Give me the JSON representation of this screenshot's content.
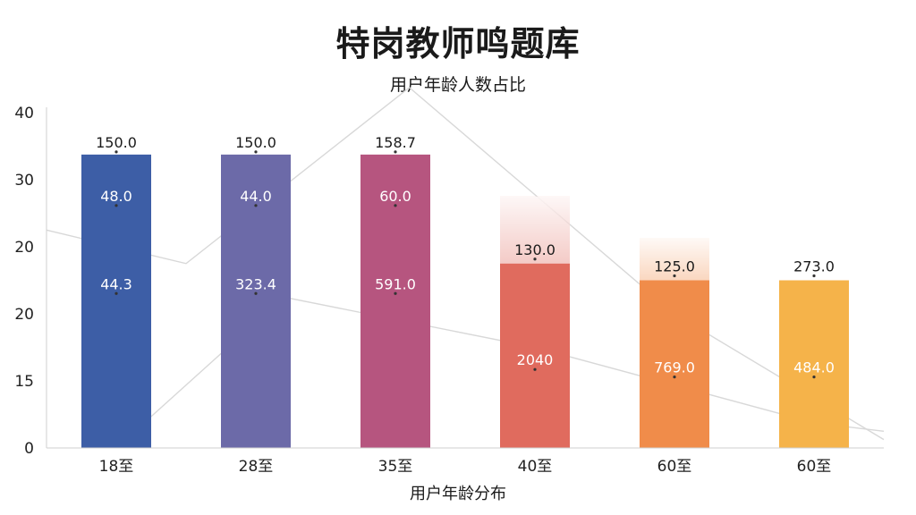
{
  "chart_data": {
    "type": "bar",
    "title": "特岗教师鸣题库",
    "subtitle": "用户年龄人数占比",
    "xlabel": "用户年龄分布",
    "ylabel": "",
    "y_tick_labels": [
      "0",
      "15",
      "20",
      "20",
      "30",
      "40"
    ],
    "categories": [
      "18至",
      "28至",
      "35至",
      "40至",
      "60至",
      "60至"
    ],
    "ylim": [
      0,
      40
    ],
    "grid": false,
    "legend": "none",
    "series": [
      {
        "label": "bar height",
        "values": [
          35,
          35,
          35,
          22,
          20,
          20
        ]
      },
      {
        "label": "upper segment",
        "values": [
          35,
          35,
          35,
          30,
          25,
          19
        ]
      }
    ],
    "data_labels": [
      [
        "150.0",
        "48.0",
        "44.3"
      ],
      [
        "150.0",
        "44.0",
        "323.4"
      ],
      [
        "158.7",
        "60.0",
        "591.0"
      ],
      [
        "130.0",
        "2040"
      ],
      [
        "125.0",
        "769.0"
      ],
      [
        "273.0",
        "484.0"
      ]
    ],
    "line_series": [
      {
        "label": "trend-upper",
        "x": [
          -0.5,
          0.5,
          2.1,
          4,
          5.5
        ],
        "y": [
          26,
          22,
          43,
          16,
          1
        ]
      },
      {
        "label": "trend-lower",
        "x": [
          0,
          1.2,
          3,
          5,
          5.5
        ],
        "y": [
          0,
          18,
          12,
          3,
          2
        ]
      }
    ],
    "colors": [
      "#3d5ea6",
      "#6c6aa8",
      "#b6557f",
      "#e06b5e",
      "#f08c4a",
      "#f5b34a"
    ]
  }
}
